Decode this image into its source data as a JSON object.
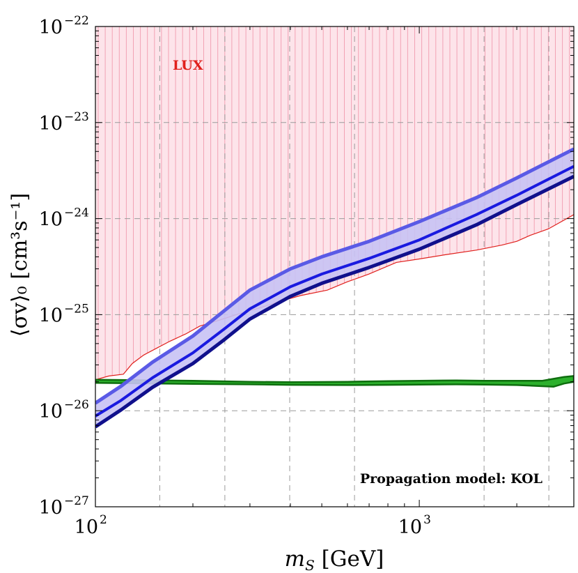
{
  "chart_data": {
    "type": "line",
    "xscale": "log",
    "yscale": "log",
    "xlim": [
      100,
      3000
    ],
    "ylim": [
      1e-27,
      1e-22
    ],
    "xlabel_main": "m",
    "xlabel_sub": "S",
    "xlabel_unit": " [GeV]",
    "ylabel": "⟨σv⟩₀ [cm³s⁻¹]",
    "x_ticks_major": [
      {
        "value": 100,
        "base": "10",
        "exp": "2"
      },
      {
        "value": 1000,
        "base": "10",
        "exp": "3"
      }
    ],
    "y_ticks_major": [
      {
        "value": 1e-27,
        "base": "10",
        "exp": "−27"
      },
      {
        "value": 1e-26,
        "base": "10",
        "exp": "−26"
      },
      {
        "value": 1e-25,
        "base": "10",
        "exp": "−25"
      },
      {
        "value": 1e-24,
        "base": "10",
        "exp": "−24"
      },
      {
        "value": 1e-23,
        "base": "10",
        "exp": "−23"
      },
      {
        "value": 1e-22,
        "base": "10",
        "exp": "−22"
      }
    ],
    "x_grid": [
      158,
      251,
      398,
      631,
      1585,
      2512
    ],
    "y_grid": [
      1e-26,
      1e-25,
      1e-24,
      1e-23
    ],
    "grid": true,
    "annotations": {
      "lux_label": "LUX",
      "propagation_label": "Propagation model: KOL"
    },
    "colors": {
      "lux_fill": "#fde4ea",
      "lux_hatch": "#f2a2b4",
      "lux_line": "#e0201c",
      "band_fill": "#c8c2f4",
      "band_upper": "#5a5ae6",
      "band_central": "#1a1ae0",
      "band_lower": "#10108c",
      "relic_fill": "#2cb02c",
      "relic_edge": "#0e6e0e",
      "lux_text": "#e0201c"
    },
    "series": [
      {
        "name": "LUX exclusion limit",
        "x": [
          100,
          110,
          122,
          130,
          141,
          155,
          170,
          190,
          210,
          240,
          280,
          320,
          370,
          430,
          520,
          600,
          700,
          850,
          1000,
          1200,
          1500,
          1800,
          2000,
          2200,
          2500,
          3000
        ],
        "y": [
          2.1e-26,
          2.3e-26,
          2.4e-26,
          3.1e-26,
          3.8e-26,
          4.5e-26,
          5.3e-26,
          6.3e-26,
          7.6e-26,
          8.7e-26,
          1.03e-25,
          1.17e-25,
          1.37e-25,
          1.58e-25,
          1.8e-25,
          2.2e-25,
          2.65e-25,
          3.5e-25,
          3.8e-25,
          4.2e-25,
          4.7e-25,
          5.3e-25,
          5.8e-25,
          6.7e-25,
          7.8e-25,
          1.1e-24
        ]
      },
      {
        "name": "Upper bound",
        "x": [
          100,
          120,
          150,
          200,
          250,
          300,
          400,
          500,
          700,
          1000,
          1500,
          2000,
          3000
        ],
        "y": [
          1.2e-26,
          1.8e-26,
          3.2e-26,
          6e-26,
          1.1e-25,
          1.8e-25,
          3e-25,
          4e-25,
          5.8e-25,
          9.3e-25,
          1.65e-24,
          2.65e-24,
          5.3e-24
        ]
      },
      {
        "name": "Central value",
        "x": [
          100,
          120,
          150,
          200,
          250,
          300,
          400,
          500,
          700,
          1000,
          1500,
          2000,
          3000
        ],
        "y": [
          8.8e-27,
          1.28e-26,
          2.2e-26,
          4e-26,
          7.1e-26,
          1.15e-25,
          1.95e-25,
          2.65e-25,
          3.85e-25,
          6e-25,
          1.1e-24,
          1.75e-24,
          3.5e-24
        ]
      },
      {
        "name": "Lower bound",
        "x": [
          100,
          120,
          150,
          200,
          250,
          300,
          400,
          500,
          700,
          1000,
          1500,
          2000,
          3000
        ],
        "y": [
          6.8e-27,
          1.02e-26,
          1.75e-26,
          3.1e-26,
          5.5e-26,
          9e-26,
          1.55e-25,
          2.12e-25,
          3.1e-25,
          4.8e-25,
          8.6e-25,
          1.4e-24,
          2.75e-24
        ]
      },
      {
        "name": "Thermal relic (upper)",
        "x": [
          100,
          200,
          300,
          400,
          600,
          800,
          1000,
          1300,
          1600,
          2000,
          2400,
          2600,
          2800,
          3000
        ],
        "y": [
          2.1e-26,
          2.05e-26,
          2e-26,
          1.98e-26,
          2e-26,
          2.03e-26,
          2.05e-26,
          2.07e-26,
          2.05e-26,
          2.05e-26,
          2.05e-26,
          2.15e-26,
          2.25e-26,
          2.3e-26
        ]
      },
      {
        "name": "Thermal relic (lower)",
        "x": [
          100,
          200,
          300,
          400,
          600,
          800,
          1000,
          1300,
          1600,
          2000,
          2400,
          2600,
          2800,
          3000
        ],
        "y": [
          1.95e-26,
          1.9e-26,
          1.88e-26,
          1.86e-26,
          1.85e-26,
          1.86e-26,
          1.87e-26,
          1.88e-26,
          1.87e-26,
          1.85e-26,
          1.8e-26,
          1.78e-26,
          1.92e-26,
          2e-26
        ]
      }
    ]
  }
}
